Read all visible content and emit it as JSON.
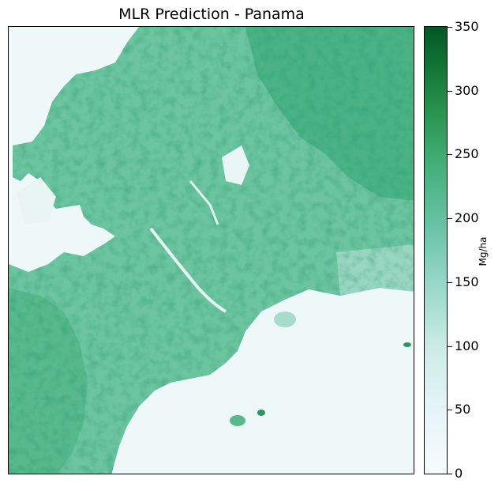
{
  "chart_data": {
    "type": "heatmap",
    "title": "MLR Prediction - Panama",
    "colorbar": {
      "label": "Mg/ha",
      "range": [
        0,
        350
      ],
      "ticks": [
        "0",
        "50",
        "100",
        "150",
        "200",
        "250",
        "300",
        "350"
      ],
      "colormap": [
        "#f7fcfd",
        "#e5f5f9",
        "#ccece6",
        "#99d8c9",
        "#66c2a4",
        "#41ae76",
        "#238b45",
        "#005824"
      ]
    },
    "axes_visible": false,
    "grid": false
  }
}
